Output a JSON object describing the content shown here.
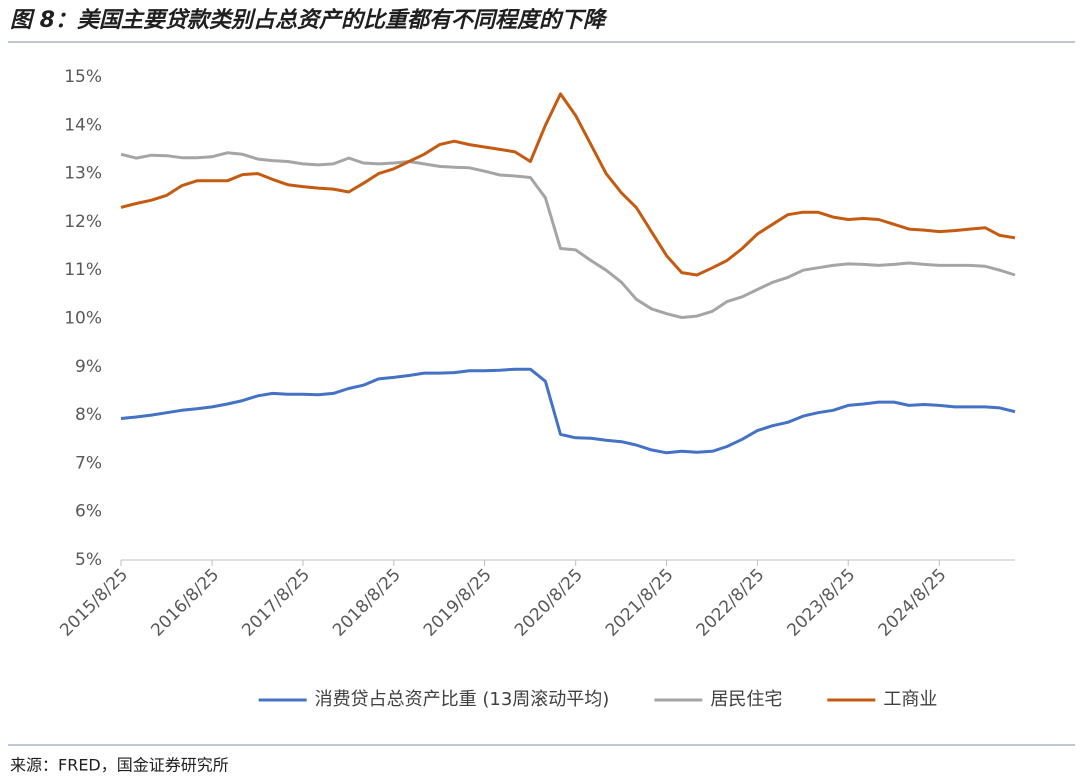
{
  "chart_data": {
    "type": "line",
    "title": "图 8：美国主要贷款类别占总资产的比重都有不同程度的下降",
    "source": "来源：FRED，国金证券研究所",
    "x": [
      "2015/8/25",
      "2015/10/25",
      "2015/12/25",
      "2016/2/25",
      "2016/4/25",
      "2016/6/25",
      "2016/8/25",
      "2016/10/25",
      "2016/12/25",
      "2017/2/25",
      "2017/4/25",
      "2017/6/25",
      "2017/8/25",
      "2017/10/25",
      "2017/12/25",
      "2018/2/25",
      "2018/4/25",
      "2018/6/25",
      "2018/8/25",
      "2018/10/25",
      "2018/12/25",
      "2019/2/25",
      "2019/4/25",
      "2019/6/25",
      "2019/8/25",
      "2019/10/25",
      "2019/12/25",
      "2020/2/25",
      "2020/4/25",
      "2020/6/25",
      "2020/8/25",
      "2020/10/25",
      "2020/12/25",
      "2021/2/25",
      "2021/4/25",
      "2021/6/25",
      "2021/8/25",
      "2021/10/25",
      "2021/12/25",
      "2022/2/25",
      "2022/4/25",
      "2022/6/25",
      "2022/8/25",
      "2022/10/25",
      "2022/12/25",
      "2023/2/25",
      "2023/4/25",
      "2023/6/25",
      "2023/8/25",
      "2023/10/25",
      "2023/12/25",
      "2024/2/25",
      "2024/4/25",
      "2024/6/25",
      "2024/8/25",
      "2024/10/25",
      "2024/12/25",
      "2025/2/25",
      "2025/4/25",
      "2025/6/25"
    ],
    "series": [
      {
        "name": "消费贷占总资产比重 (13周滚动平均)",
        "color": "#4472c4",
        "values": [
          7.93,
          7.96,
          8.0,
          8.05,
          8.1,
          8.13,
          8.17,
          8.23,
          8.3,
          8.4,
          8.45,
          8.43,
          8.43,
          8.42,
          8.45,
          8.55,
          8.62,
          8.75,
          8.78,
          8.82,
          8.87,
          8.87,
          8.88,
          8.92,
          8.92,
          8.93,
          8.95,
          8.95,
          8.7,
          7.6,
          7.53,
          7.52,
          7.48,
          7.45,
          7.38,
          7.28,
          7.22,
          7.25,
          7.23,
          7.25,
          7.35,
          7.5,
          7.68,
          7.78,
          7.85,
          7.98,
          8.05,
          8.1,
          8.2,
          8.23,
          8.27,
          8.27,
          8.2,
          8.22,
          8.2,
          8.17,
          8.17,
          8.17,
          8.15,
          8.07
        ]
      },
      {
        "name": "居民住宅",
        "color": "#a5a5a5",
        "values": [
          13.4,
          13.32,
          13.38,
          13.37,
          13.33,
          13.33,
          13.35,
          13.43,
          13.4,
          13.3,
          13.27,
          13.25,
          13.2,
          13.18,
          13.2,
          13.32,
          13.22,
          13.2,
          13.22,
          13.25,
          13.2,
          13.15,
          13.13,
          13.12,
          13.05,
          12.97,
          12.95,
          12.92,
          12.5,
          11.45,
          11.42,
          11.2,
          11.0,
          10.75,
          10.4,
          10.2,
          10.1,
          10.02,
          10.05,
          10.15,
          10.35,
          10.45,
          10.6,
          10.75,
          10.85,
          11.0,
          11.05,
          11.1,
          11.13,
          11.12,
          11.1,
          11.12,
          11.15,
          11.12,
          11.1,
          11.1,
          11.1,
          11.08,
          11.0,
          10.9
        ]
      },
      {
        "name": "工商业",
        "color": "#c55a11",
        "values": [
          12.3,
          12.38,
          12.45,
          12.55,
          12.75,
          12.85,
          12.85,
          12.85,
          12.98,
          13.0,
          12.88,
          12.77,
          12.73,
          12.7,
          12.68,
          12.62,
          12.8,
          13.0,
          13.1,
          13.25,
          13.4,
          13.6,
          13.67,
          13.6,
          13.55,
          13.5,
          13.45,
          13.25,
          14.0,
          14.65,
          14.2,
          13.6,
          13.0,
          12.6,
          12.3,
          11.8,
          11.3,
          10.95,
          10.9,
          11.05,
          11.2,
          11.45,
          11.75,
          11.95,
          12.15,
          12.2,
          12.2,
          12.1,
          12.05,
          12.07,
          12.05,
          11.95,
          11.85,
          11.83,
          11.8,
          11.82,
          11.85,
          11.88,
          11.72,
          11.67
        ]
      }
    ],
    "xlim": [
      "2015/8/25",
      "2025/6/25"
    ],
    "xticks": [
      "2015/8/25",
      "2016/8/25",
      "2017/8/25",
      "2018/8/25",
      "2019/8/25",
      "2020/8/25",
      "2021/8/25",
      "2022/8/25",
      "2023/8/25",
      "2024/8/25"
    ],
    "ylim": [
      5,
      15
    ],
    "yticks": [
      {
        "value": 5,
        "label": "5%"
      },
      {
        "value": 6,
        "label": "6%"
      },
      {
        "value": 7,
        "label": "7%"
      },
      {
        "value": 8,
        "label": "8%"
      },
      {
        "value": 9,
        "label": "9%"
      },
      {
        "value": 10,
        "label": "10%"
      },
      {
        "value": 11,
        "label": "11%"
      },
      {
        "value": 12,
        "label": "12%"
      },
      {
        "value": 13,
        "label": "13%"
      },
      {
        "value": 14,
        "label": "14%"
      },
      {
        "value": 15,
        "label": "15%"
      }
    ],
    "grid": false,
    "legend": "bottom"
  }
}
